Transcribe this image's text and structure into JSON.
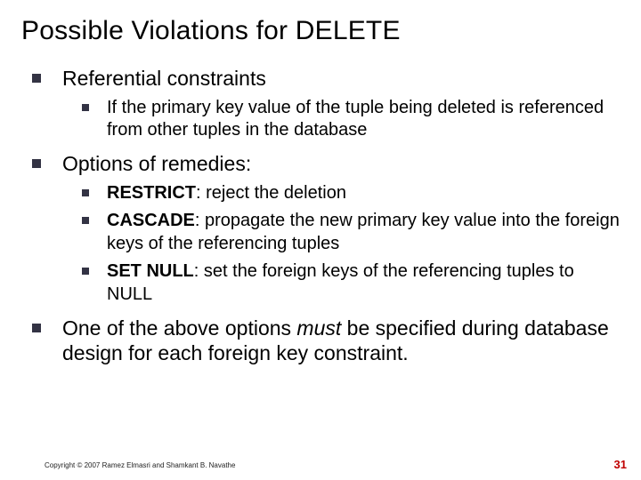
{
  "slide": {
    "title": "Possible Violations for DELETE",
    "bullets": {
      "b1": "Referential constraints",
      "b1_1": "If the primary key value of the tuple being deleted is referenced from other tuples in the database",
      "b2": "Options of remedies:",
      "b2_1_head": "RESTRICT",
      "b2_1_rest": ": reject the deletion",
      "b2_2_head": "CASCADE",
      "b2_2_rest": ": propagate the new primary key value into the foreign keys of the referencing tuples",
      "b2_3_head": "SET NULL",
      "b2_3_rest": ": set the foreign keys of the referencing tuples to NULL",
      "b3_pre": "One of the above options ",
      "b3_em": "must",
      "b3_post": " be specified during database design for each foreign key constraint."
    },
    "footer": {
      "copyright": "Copyright © 2007 Ramez Elmasri and Shamkant B. Navathe",
      "page": "31"
    },
    "colors": {
      "bullet": "#333344",
      "page_number": "#c00000",
      "text": "#000000",
      "background": "#ffffff"
    },
    "fonts": {
      "title_size_pt": 30,
      "lvl1_size_pt": 23,
      "lvl2_size_pt": 20,
      "footer_size_pt": 8,
      "page_size_pt": 13,
      "family": "Arial"
    }
  }
}
